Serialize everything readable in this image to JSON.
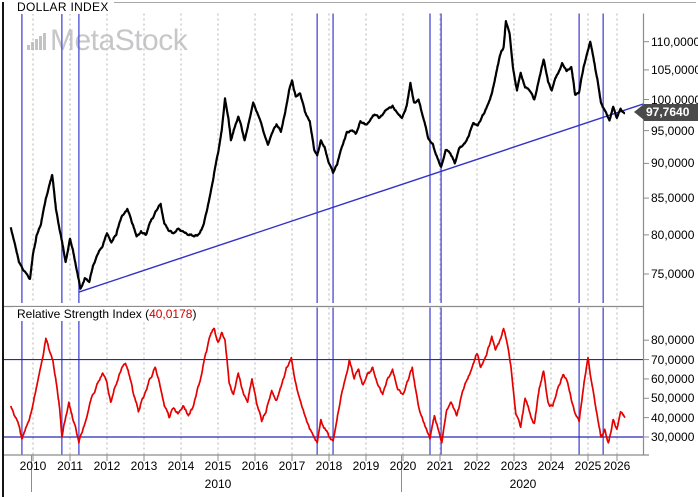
{
  "header": {
    "title": "DOLLAR INDEX"
  },
  "watermark": {
    "text": "MetaStock",
    "icon": "bar-chart-icon"
  },
  "colors": {
    "price_line": "#000000",
    "rsi_line": "#e60000",
    "trendline": "#3232c8",
    "event_line": "#5555d8",
    "level_line": "#2828b4",
    "grid": "#b3b3b3",
    "frame": "#8c8c8c",
    "badge_bg": "#4a4a4a",
    "badge_text": "#ffffff",
    "watermark": "#c7c7c9",
    "rsi_value_text": "#cc0000"
  },
  "price_panel": {
    "axis_ticks": [
      {
        "label": "110,0000",
        "value": 110
      },
      {
        "label": "105,0000",
        "value": 105
      },
      {
        "label": "100,0000",
        "value": 100
      },
      {
        "label": "95,0000",
        "value": 95
      },
      {
        "label": "90,0000",
        "value": 90
      },
      {
        "label": "85,0000",
        "value": 85
      },
      {
        "label": "80,0000",
        "value": 80
      },
      {
        "label": "75,0000",
        "value": 75
      }
    ],
    "last_price_badge": {
      "label": "97,7640",
      "value": 97.764
    }
  },
  "rsi_panel": {
    "title": "Relative Strength Index ",
    "open_paren": "(",
    "value_label": "40,0178",
    "close_paren": ")",
    "axis_ticks": [
      {
        "label": "80,0000",
        "value": 80
      },
      {
        "label": "70,0000",
        "value": 70
      },
      {
        "label": "60,0000",
        "value": 60
      },
      {
        "label": "50,0000",
        "value": 50
      },
      {
        "label": "40,0000",
        "value": 40
      },
      {
        "label": "30,0000",
        "value": 30
      }
    ]
  },
  "x_axis": {
    "years": [
      "2010",
      "2011",
      "2012",
      "2013",
      "2014",
      "2015",
      "2016",
      "2017",
      "2018",
      "2019",
      "2020",
      "2021",
      "2022",
      "2023",
      "2024",
      "2025",
      "2026"
    ],
    "decade_labels": [
      {
        "label": "2010",
        "start": 2010,
        "end": 2020
      },
      {
        "label": "2020",
        "start": 2020,
        "end": 2026.5
      }
    ]
  },
  "chart_data": {
    "type": "line",
    "title": "DOLLAR INDEX",
    "x_range": [
      2009.4,
      2026.5
    ],
    "legend_position": "none",
    "grid": "dashed-vertical-years",
    "price_series": {
      "name": "DOLLAR INDEX",
      "scale": "log",
      "y_ticks": [
        75,
        80,
        85,
        90,
        95,
        100,
        105,
        110
      ],
      "last_value": 97.764,
      "points": [
        [
          2009.4,
          81.0
        ],
        [
          2009.5,
          79.0
        ],
        [
          2009.62,
          76.5
        ],
        [
          2009.8,
          75.2
        ],
        [
          2009.92,
          74.4
        ],
        [
          2010.0,
          77.5
        ],
        [
          2010.1,
          80.0
        ],
        [
          2010.22,
          81.5
        ],
        [
          2010.35,
          85.0
        ],
        [
          2010.45,
          87.0
        ],
        [
          2010.52,
          88.3
        ],
        [
          2010.62,
          83.5
        ],
        [
          2010.75,
          80.0
        ],
        [
          2010.88,
          76.5
        ],
        [
          2011.0,
          79.5
        ],
        [
          2011.08,
          78.0
        ],
        [
          2011.18,
          75.5
        ],
        [
          2011.28,
          73.2
        ],
        [
          2011.4,
          74.5
        ],
        [
          2011.52,
          74.0
        ],
        [
          2011.62,
          76.0
        ],
        [
          2011.75,
          77.5
        ],
        [
          2011.88,
          78.5
        ],
        [
          2012.0,
          80.2
        ],
        [
          2012.12,
          79.0
        ],
        [
          2012.25,
          80.0
        ],
        [
          2012.4,
          82.5
        ],
        [
          2012.55,
          83.5
        ],
        [
          2012.68,
          81.5
        ],
        [
          2012.8,
          79.8
        ],
        [
          2012.92,
          80.5
        ],
        [
          2013.05,
          80.0
        ],
        [
          2013.18,
          81.8
        ],
        [
          2013.3,
          83.0
        ],
        [
          2013.45,
          84.2
        ],
        [
          2013.55,
          81.5
        ],
        [
          2013.68,
          80.5
        ],
        [
          2013.8,
          80.2
        ],
        [
          2013.92,
          80.8
        ],
        [
          2014.05,
          80.5
        ],
        [
          2014.2,
          80.0
        ],
        [
          2014.35,
          79.8
        ],
        [
          2014.5,
          80.2
        ],
        [
          2014.62,
          81.5
        ],
        [
          2014.75,
          84.5
        ],
        [
          2014.88,
          88.0
        ],
        [
          2015.0,
          91.5
        ],
        [
          2015.1,
          95.0
        ],
        [
          2015.19,
          100.2
        ],
        [
          2015.28,
          97.0
        ],
        [
          2015.35,
          93.5
        ],
        [
          2015.45,
          95.5
        ],
        [
          2015.55,
          97.2
        ],
        [
          2015.62,
          96.0
        ],
        [
          2015.72,
          93.5
        ],
        [
          2015.82,
          96.0
        ],
        [
          2015.95,
          99.5
        ],
        [
          2016.08,
          97.5
        ],
        [
          2016.2,
          95.5
        ],
        [
          2016.35,
          92.8
        ],
        [
          2016.45,
          94.5
        ],
        [
          2016.58,
          96.0
        ],
        [
          2016.7,
          94.8
        ],
        [
          2016.82,
          98.0
        ],
        [
          2016.92,
          101.5
        ],
        [
          2017.0,
          103.2
        ],
        [
          2017.1,
          100.5
        ],
        [
          2017.22,
          101.0
        ],
        [
          2017.35,
          98.0
        ],
        [
          2017.48,
          96.5
        ],
        [
          2017.6,
          92.0
        ],
        [
          2017.68,
          91.2
        ],
        [
          2017.78,
          93.5
        ],
        [
          2017.88,
          92.5
        ],
        [
          2018.0,
          90.0
        ],
        [
          2018.11,
          88.6
        ],
        [
          2018.22,
          89.8
        ],
        [
          2018.35,
          92.5
        ],
        [
          2018.48,
          94.8
        ],
        [
          2018.6,
          95.0
        ],
        [
          2018.72,
          94.5
        ],
        [
          2018.85,
          96.5
        ],
        [
          2018.97,
          96.0
        ],
        [
          2019.1,
          96.5
        ],
        [
          2019.22,
          97.5
        ],
        [
          2019.35,
          97.0
        ],
        [
          2019.48,
          97.8
        ],
        [
          2019.6,
          98.5
        ],
        [
          2019.72,
          99.0
        ],
        [
          2019.85,
          97.8
        ],
        [
          2019.97,
          97.0
        ],
        [
          2020.1,
          99.0
        ],
        [
          2020.2,
          102.8
        ],
        [
          2020.3,
          99.5
        ],
        [
          2020.42,
          100.0
        ],
        [
          2020.55,
          97.0
        ],
        [
          2020.68,
          93.8
        ],
        [
          2020.8,
          93.0
        ],
        [
          2020.92,
          91.0
        ],
        [
          2021.03,
          89.5
        ],
        [
          2021.15,
          92.0
        ],
        [
          2021.28,
          91.5
        ],
        [
          2021.4,
          90.0
        ],
        [
          2021.52,
          92.3
        ],
        [
          2021.65,
          93.0
        ],
        [
          2021.78,
          94.2
        ],
        [
          2021.9,
          96.2
        ],
        [
          2022.02,
          95.8
        ],
        [
          2022.15,
          97.5
        ],
        [
          2022.28,
          99.0
        ],
        [
          2022.4,
          101.0
        ],
        [
          2022.52,
          104.5
        ],
        [
          2022.62,
          107.5
        ],
        [
          2022.72,
          109.0
        ],
        [
          2022.78,
          113.8
        ],
        [
          2022.88,
          111.5
        ],
        [
          2022.97,
          105.5
        ],
        [
          2023.08,
          101.5
        ],
        [
          2023.18,
          104.5
        ],
        [
          2023.3,
          102.0
        ],
        [
          2023.42,
          101.5
        ],
        [
          2023.55,
          100.0
        ],
        [
          2023.68,
          103.5
        ],
        [
          2023.8,
          106.8
        ],
        [
          2023.92,
          103.0
        ],
        [
          2024.02,
          101.5
        ],
        [
          2024.15,
          104.0
        ],
        [
          2024.3,
          106.2
        ],
        [
          2024.42,
          104.8
        ],
        [
          2024.55,
          105.5
        ],
        [
          2024.65,
          100.8
        ],
        [
          2024.76,
          101.2
        ],
        [
          2024.88,
          105.5
        ],
        [
          2025.0,
          108.5
        ],
        [
          2025.06,
          110.0
        ],
        [
          2025.15,
          107.0
        ],
        [
          2025.25,
          103.5
        ],
        [
          2025.35,
          99.5
        ],
        [
          2025.48,
          98.0
        ],
        [
          2025.58,
          96.6
        ],
        [
          2025.68,
          98.8
        ],
        [
          2025.78,
          97.0
        ],
        [
          2025.88,
          98.5
        ],
        [
          2026.0,
          97.764
        ]
      ]
    },
    "rsi_series": {
      "name": "Relative Strength Index",
      "levels": [
        30,
        70
      ],
      "y_ticks": [
        30,
        40,
        50,
        60,
        70,
        80
      ],
      "last_value": 40.0178,
      "points": [
        [
          2009.4,
          46
        ],
        [
          2009.5,
          41
        ],
        [
          2009.62,
          36
        ],
        [
          2009.7,
          29
        ],
        [
          2009.78,
          33
        ],
        [
          2009.88,
          38
        ],
        [
          2010.0,
          47
        ],
        [
          2010.12,
          58
        ],
        [
          2010.25,
          70
        ],
        [
          2010.35,
          81
        ],
        [
          2010.45,
          74
        ],
        [
          2010.55,
          68
        ],
        [
          2010.65,
          55
        ],
        [
          2010.72,
          45
        ],
        [
          2010.78,
          30
        ],
        [
          2010.88,
          40
        ],
        [
          2010.97,
          48
        ],
        [
          2011.05,
          42
        ],
        [
          2011.15,
          35
        ],
        [
          2011.24,
          27
        ],
        [
          2011.35,
          34
        ],
        [
          2011.5,
          44
        ],
        [
          2011.62,
          52
        ],
        [
          2011.75,
          58
        ],
        [
          2011.88,
          63
        ],
        [
          2012.0,
          58
        ],
        [
          2012.1,
          48
        ],
        [
          2012.22,
          56
        ],
        [
          2012.35,
          63
        ],
        [
          2012.5,
          68
        ],
        [
          2012.6,
          62
        ],
        [
          2012.72,
          52
        ],
        [
          2012.85,
          43
        ],
        [
          2013.0,
          51
        ],
        [
          2013.15,
          60
        ],
        [
          2013.3,
          66
        ],
        [
          2013.42,
          58
        ],
        [
          2013.55,
          46
        ],
        [
          2013.68,
          40
        ],
        [
          2013.8,
          45
        ],
        [
          2013.92,
          42
        ],
        [
          2014.05,
          46
        ],
        [
          2014.2,
          41
        ],
        [
          2014.35,
          47
        ],
        [
          2014.5,
          58
        ],
        [
          2014.65,
          72
        ],
        [
          2014.78,
          82
        ],
        [
          2014.9,
          86
        ],
        [
          2015.0,
          79
        ],
        [
          2015.1,
          84
        ],
        [
          2015.19,
          80
        ],
        [
          2015.3,
          58
        ],
        [
          2015.42,
          52
        ],
        [
          2015.55,
          63
        ],
        [
          2015.65,
          55
        ],
        [
          2015.8,
          48
        ],
        [
          2015.92,
          60
        ],
        [
          2016.05,
          47
        ],
        [
          2016.18,
          38
        ],
        [
          2016.3,
          43
        ],
        [
          2016.45,
          54
        ],
        [
          2016.58,
          49
        ],
        [
          2016.72,
          57
        ],
        [
          2016.85,
          66
        ],
        [
          2016.98,
          71
        ],
        [
          2017.1,
          58
        ],
        [
          2017.25,
          47
        ],
        [
          2017.4,
          38
        ],
        [
          2017.55,
          32
        ],
        [
          2017.68,
          27
        ],
        [
          2017.78,
          39
        ],
        [
          2017.9,
          34
        ],
        [
          2018.0,
          30
        ],
        [
          2018.11,
          28
        ],
        [
          2018.25,
          43
        ],
        [
          2018.4,
          57
        ],
        [
          2018.55,
          70
        ],
        [
          2018.68,
          60
        ],
        [
          2018.8,
          65
        ],
        [
          2018.92,
          57
        ],
        [
          2019.05,
          63
        ],
        [
          2019.18,
          66
        ],
        [
          2019.3,
          58
        ],
        [
          2019.45,
          52
        ],
        [
          2019.58,
          60
        ],
        [
          2019.72,
          65
        ],
        [
          2019.85,
          55
        ],
        [
          2020.0,
          52
        ],
        [
          2020.15,
          60
        ],
        [
          2020.25,
          66
        ],
        [
          2020.4,
          48
        ],
        [
          2020.55,
          38
        ],
        [
          2020.65,
          33
        ],
        [
          2020.73,
          29
        ],
        [
          2020.85,
          41
        ],
        [
          2020.95,
          34
        ],
        [
          2021.05,
          27
        ],
        [
          2021.18,
          44
        ],
        [
          2021.3,
          48
        ],
        [
          2021.45,
          41
        ],
        [
          2021.6,
          53
        ],
        [
          2021.75,
          60
        ],
        [
          2021.9,
          68
        ],
        [
          2022.0,
          73
        ],
        [
          2022.1,
          66
        ],
        [
          2022.25,
          72
        ],
        [
          2022.4,
          82
        ],
        [
          2022.5,
          75
        ],
        [
          2022.62,
          80
        ],
        [
          2022.72,
          86
        ],
        [
          2022.82,
          78
        ],
        [
          2022.92,
          66
        ],
        [
          2023.05,
          42
        ],
        [
          2023.18,
          35
        ],
        [
          2023.3,
          50
        ],
        [
          2023.42,
          43
        ],
        [
          2023.55,
          37
        ],
        [
          2023.68,
          55
        ],
        [
          2023.8,
          64
        ],
        [
          2023.92,
          48
        ],
        [
          2024.05,
          46
        ],
        [
          2024.18,
          55
        ],
        [
          2024.32,
          62
        ],
        [
          2024.45,
          58
        ],
        [
          2024.58,
          47
        ],
        [
          2024.76,
          38
        ],
        [
          2024.88,
          56
        ],
        [
          2025.0,
          71
        ],
        [
          2025.1,
          58
        ],
        [
          2025.22,
          44
        ],
        [
          2025.35,
          30
        ],
        [
          2025.45,
          34
        ],
        [
          2025.55,
          27
        ],
        [
          2025.68,
          39
        ],
        [
          2025.78,
          34
        ],
        [
          2025.88,
          43
        ],
        [
          2026.0,
          40.0178
        ]
      ]
    },
    "trendline": {
      "x1": 2011.24,
      "y1": 72.8,
      "x2": 2026.49,
      "y2": 99.26
    },
    "event_lines_x": [
      2009.7,
      2010.78,
      2011.24,
      2017.68,
      2018.11,
      2020.73,
      2021.03,
      2024.76,
      2025.41
    ]
  }
}
